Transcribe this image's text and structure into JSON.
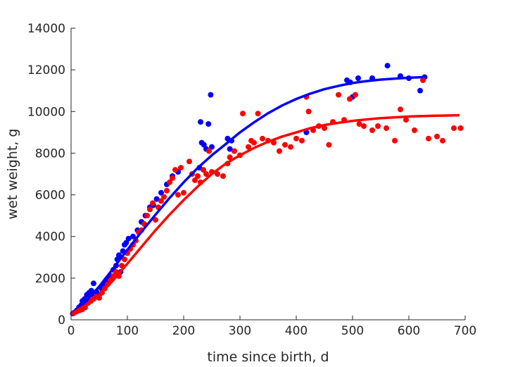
{
  "chart_data": {
    "type": "scatter",
    "title": "",
    "xlabel": "time since birth, d",
    "ylabel": "wet weight, g",
    "xlim": [
      0,
      700
    ],
    "ylim": [
      0,
      14000
    ],
    "xticks": [
      0,
      100,
      200,
      300,
      400,
      500,
      600,
      700
    ],
    "yticks": [
      0,
      2000,
      4000,
      6000,
      8000,
      10000,
      12000,
      14000
    ],
    "grid": false,
    "legend": "none",
    "series": [
      {
        "color": "#0000ff",
        "kind": "points",
        "points": [
          [
            3,
            300
          ],
          [
            6,
            350
          ],
          [
            10,
            450
          ],
          [
            14,
            600
          ],
          [
            18,
            700
          ],
          [
            20,
            900
          ],
          [
            24,
            1000
          ],
          [
            28,
            1200
          ],
          [
            32,
            1300
          ],
          [
            36,
            1400
          ],
          [
            40,
            1750
          ],
          [
            42,
            1100
          ],
          [
            45,
            1350
          ],
          [
            50,
            1200
          ],
          [
            54,
            1500
          ],
          [
            58,
            1700
          ],
          [
            62,
            1900
          ],
          [
            66,
            2000
          ],
          [
            70,
            2100
          ],
          [
            75,
            2400
          ],
          [
            80,
            2600
          ],
          [
            82,
            2900
          ],
          [
            85,
            3100
          ],
          [
            88,
            2300
          ],
          [
            92,
            3300
          ],
          [
            95,
            3600
          ],
          [
            98,
            3700
          ],
          [
            102,
            3900
          ],
          [
            110,
            4000
          ],
          [
            118,
            4300
          ],
          [
            125,
            4700
          ],
          [
            132,
            5000
          ],
          [
            140,
            5400
          ],
          [
            146,
            5500
          ],
          [
            152,
            5800
          ],
          [
            160,
            6100
          ],
          [
            170,
            6500
          ],
          [
            180,
            6900
          ],
          [
            190,
            7100
          ],
          [
            228,
            7300
          ],
          [
            230,
            9500
          ],
          [
            232,
            8500
          ],
          [
            236,
            8400
          ],
          [
            240,
            8200
          ],
          [
            244,
            9400
          ],
          [
            248,
            10800
          ],
          [
            250,
            8300
          ],
          [
            278,
            8700
          ],
          [
            282,
            8200
          ],
          [
            285,
            8600
          ],
          [
            418,
            9000
          ],
          [
            490,
            11500
          ],
          [
            496,
            11400
          ],
          [
            500,
            10700
          ],
          [
            510,
            11600
          ],
          [
            535,
            11600
          ],
          [
            562,
            12200
          ],
          [
            585,
            11700
          ],
          [
            600,
            11600
          ],
          [
            620,
            11000
          ],
          [
            628,
            11650
          ]
        ]
      },
      {
        "color": "#ff0000",
        "kind": "points",
        "points": [
          [
            5,
            320
          ],
          [
            10,
            400
          ],
          [
            15,
            450
          ],
          [
            20,
            500
          ],
          [
            25,
            600
          ],
          [
            30,
            800
          ],
          [
            35,
            900
          ],
          [
            40,
            1000
          ],
          [
            45,
            1100
          ],
          [
            50,
            1050
          ],
          [
            55,
            1300
          ],
          [
            60,
            1500
          ],
          [
            65,
            1700
          ],
          [
            70,
            1900
          ],
          [
            75,
            2100
          ],
          [
            80,
            2300
          ],
          [
            85,
            2100
          ],
          [
            90,
            2600
          ],
          [
            95,
            2900
          ],
          [
            100,
            3200
          ],
          [
            105,
            3400
          ],
          [
            110,
            3600
          ],
          [
            115,
            3800
          ],
          [
            120,
            4200
          ],
          [
            125,
            4300
          ],
          [
            130,
            4600
          ],
          [
            135,
            5000
          ],
          [
            140,
            5300
          ],
          [
            145,
            5600
          ],
          [
            150,
            4800
          ],
          [
            155,
            5400
          ],
          [
            160,
            5700
          ],
          [
            165,
            5900
          ],
          [
            170,
            6200
          ],
          [
            175,
            6600
          ],
          [
            180,
            6800
          ],
          [
            185,
            7200
          ],
          [
            190,
            6000
          ],
          [
            195,
            7300
          ],
          [
            200,
            6100
          ],
          [
            210,
            7600
          ],
          [
            215,
            7000
          ],
          [
            220,
            6700
          ],
          [
            225,
            6900
          ],
          [
            230,
            6600
          ],
          [
            235,
            7200
          ],
          [
            240,
            7000
          ],
          [
            245,
            8100
          ],
          [
            250,
            7100
          ],
          [
            260,
            7000
          ],
          [
            270,
            6900
          ],
          [
            278,
            7500
          ],
          [
            282,
            7800
          ],
          [
            290,
            8100
          ],
          [
            300,
            7900
          ],
          [
            305,
            9900
          ],
          [
            315,
            8300
          ],
          [
            320,
            8600
          ],
          [
            325,
            8500
          ],
          [
            332,
            9900
          ],
          [
            340,
            8700
          ],
          [
            350,
            8600
          ],
          [
            360,
            8500
          ],
          [
            370,
            8100
          ],
          [
            380,
            8400
          ],
          [
            390,
            8300
          ],
          [
            400,
            8700
          ],
          [
            410,
            8600
          ],
          [
            418,
            10700
          ],
          [
            422,
            10000
          ],
          [
            430,
            9100
          ],
          [
            440,
            9300
          ],
          [
            450,
            9200
          ],
          [
            458,
            8400
          ],
          [
            465,
            9500
          ],
          [
            475,
            10800
          ],
          [
            485,
            9600
          ],
          [
            495,
            10600
          ],
          [
            505,
            10800
          ],
          [
            512,
            9400
          ],
          [
            520,
            9300
          ],
          [
            535,
            9100
          ],
          [
            545,
            9300
          ],
          [
            560,
            9200
          ],
          [
            575,
            8600
          ],
          [
            585,
            10100
          ],
          [
            595,
            9600
          ],
          [
            610,
            9100
          ],
          [
            625,
            11500
          ],
          [
            635,
            8700
          ],
          [
            650,
            8800
          ],
          [
            660,
            8600
          ],
          [
            680,
            9200
          ],
          [
            692,
            9200
          ]
        ]
      },
      {
        "color": "#0000ff",
        "kind": "fit-curve",
        "points": [
          [
            0,
            280
          ],
          [
            25,
            840
          ],
          [
            50,
            1600
          ],
          [
            75,
            2470
          ],
          [
            100,
            3360
          ],
          [
            125,
            4220
          ],
          [
            150,
            5050
          ],
          [
            175,
            5850
          ],
          [
            200,
            6600
          ],
          [
            225,
            7290
          ],
          [
            250,
            7900
          ],
          [
            275,
            8440
          ],
          [
            300,
            9000
          ],
          [
            325,
            9480
          ],
          [
            350,
            9920
          ],
          [
            375,
            10290
          ],
          [
            400,
            10600
          ],
          [
            425,
            10860
          ],
          [
            450,
            11070
          ],
          [
            475,
            11230
          ],
          [
            500,
            11370
          ],
          [
            525,
            11460
          ],
          [
            550,
            11530
          ],
          [
            575,
            11580
          ],
          [
            600,
            11620
          ],
          [
            625,
            11650
          ]
        ]
      },
      {
        "color": "#ff0000",
        "kind": "fit-curve",
        "points": [
          [
            0,
            280
          ],
          [
            25,
            700
          ],
          [
            50,
            1200
          ],
          [
            75,
            1900
          ],
          [
            100,
            2700
          ],
          [
            125,
            3500
          ],
          [
            150,
            4300
          ],
          [
            175,
            5050
          ],
          [
            200,
            5750
          ],
          [
            225,
            6400
          ],
          [
            250,
            7000
          ],
          [
            275,
            7500
          ],
          [
            300,
            7900
          ],
          [
            325,
            8250
          ],
          [
            350,
            8550
          ],
          [
            375,
            8800
          ],
          [
            400,
            9000
          ],
          [
            425,
            9200
          ],
          [
            450,
            9350
          ],
          [
            475,
            9460
          ],
          [
            500,
            9550
          ],
          [
            525,
            9620
          ],
          [
            550,
            9680
          ],
          [
            575,
            9720
          ],
          [
            600,
            9760
          ],
          [
            625,
            9780
          ],
          [
            650,
            9800
          ],
          [
            675,
            9810
          ],
          [
            690,
            9820
          ]
        ]
      }
    ]
  }
}
